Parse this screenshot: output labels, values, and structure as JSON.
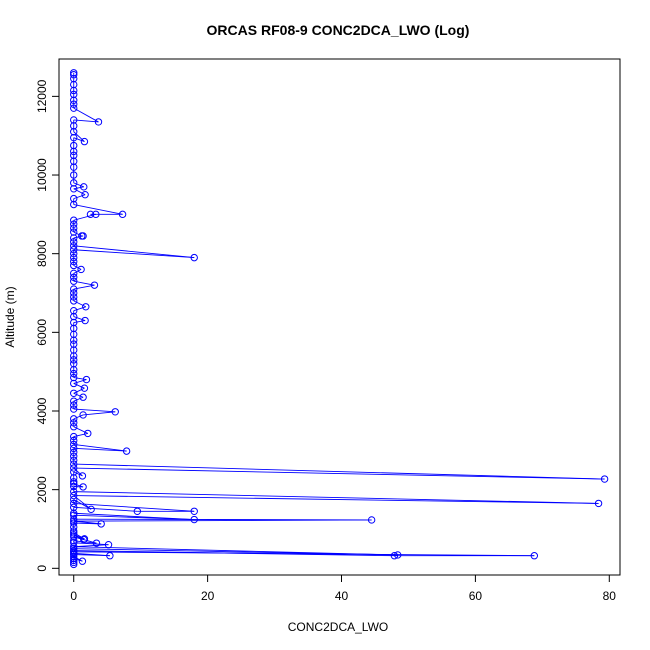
{
  "chart_data": {
    "type": "scatter",
    "title": "ORCAS RF08-9 CONC2DCA_LWO (Log)",
    "xlabel": "CONC2DCA_LWO",
    "ylabel": "Altitude (m)",
    "xlim": [
      -2.2,
      81.6
    ],
    "ylim": [
      -170,
      12950
    ],
    "xticks": [
      0,
      20,
      40,
      60,
      80
    ],
    "yticks": [
      0,
      2000,
      4000,
      6000,
      8000,
      10000,
      12000
    ],
    "grid": false,
    "legend": "none",
    "series_color": "#0000ff",
    "marker": "open-circle",
    "connected": true,
    "points": [
      [
        0,
        12600
      ],
      [
        0,
        12550
      ],
      [
        0,
        12450
      ],
      [
        0,
        12300
      ],
      [
        0,
        12150
      ],
      [
        0,
        12050
      ],
      [
        0,
        11900
      ],
      [
        0,
        11800
      ],
      [
        0,
        11700
      ],
      [
        3.7,
        11350
      ],
      [
        0,
        11400
      ],
      [
        0,
        11250
      ],
      [
        0,
        11100
      ],
      [
        1.6,
        10850
      ],
      [
        0,
        10950
      ],
      [
        0,
        10750
      ],
      [
        0,
        10600
      ],
      [
        0,
        10500
      ],
      [
        0,
        10350
      ],
      [
        0,
        10200
      ],
      [
        0,
        10000
      ],
      [
        0,
        9800
      ],
      [
        1.5,
        9700
      ],
      [
        0,
        9650
      ],
      [
        1.7,
        9500
      ],
      [
        0,
        9400
      ],
      [
        0,
        9250
      ],
      [
        7.3,
        9000
      ],
      [
        2.5,
        9000
      ],
      [
        3.3,
        9000
      ],
      [
        0,
        8850
      ],
      [
        0,
        8750
      ],
      [
        0,
        8650
      ],
      [
        0,
        8550
      ],
      [
        1.2,
        8450
      ],
      [
        1.4,
        8450
      ],
      [
        0,
        8400
      ],
      [
        0,
        8300
      ],
      [
        0,
        8200
      ],
      [
        18,
        7900
      ],
      [
        0,
        8100
      ],
      [
        0,
        8000
      ],
      [
        0,
        7900
      ],
      [
        0,
        7800
      ],
      [
        0,
        7700
      ],
      [
        1.1,
        7600
      ],
      [
        0,
        7500
      ],
      [
        0,
        7400
      ],
      [
        0,
        7300
      ],
      [
        3.1,
        7200
      ],
      [
        0,
        7100
      ],
      [
        0,
        7000
      ],
      [
        0,
        6900
      ],
      [
        0,
        6800
      ],
      [
        1.8,
        6650
      ],
      [
        0,
        6550
      ],
      [
        0,
        6400
      ],
      [
        1.7,
        6300
      ],
      [
        0,
        6250
      ],
      [
        0,
        6100
      ],
      [
        0,
        5950
      ],
      [
        0,
        5800
      ],
      [
        0,
        5700
      ],
      [
        0,
        5550
      ],
      [
        0,
        5400
      ],
      [
        0,
        5300
      ],
      [
        0,
        5200
      ],
      [
        0,
        5050
      ],
      [
        0,
        4950
      ],
      [
        0,
        4850
      ],
      [
        1.9,
        4800
      ],
      [
        0,
        4700
      ],
      [
        1.6,
        4580
      ],
      [
        0,
        4450
      ],
      [
        1.4,
        4350
      ],
      [
        0,
        4250
      ],
      [
        0,
        4150
      ],
      [
        0,
        4050
      ],
      [
        6.2,
        3980
      ],
      [
        1.4,
        3900
      ],
      [
        0,
        3800
      ],
      [
        0,
        3700
      ],
      [
        0,
        3600
      ],
      [
        2.1,
        3430
      ],
      [
        0,
        3350
      ],
      [
        0,
        3250
      ],
      [
        0,
        3150
      ],
      [
        7.9,
        2980
      ],
      [
        0,
        3050
      ],
      [
        0,
        2950
      ],
      [
        0,
        2850
      ],
      [
        0,
        2750
      ],
      [
        0,
        2650
      ],
      [
        79.3,
        2270
      ],
      [
        0,
        2550
      ],
      [
        1.3,
        2350
      ],
      [
        0,
        2450
      ],
      [
        0,
        2300
      ],
      [
        0,
        2200
      ],
      [
        0,
        2150
      ],
      [
        1.4,
        2070
      ],
      [
        0,
        2080
      ],
      [
        0,
        1950
      ],
      [
        78.4,
        1650
      ],
      [
        0,
        1850
      ],
      [
        2.6,
        1500
      ],
      [
        0,
        1750
      ],
      [
        0,
        1650
      ],
      [
        18,
        1450
      ],
      [
        9.5,
        1450
      ],
      [
        0,
        1550
      ],
      [
        0,
        1400
      ],
      [
        18,
        1240
      ],
      [
        0,
        1350
      ],
      [
        0,
        1250
      ],
      [
        44.5,
        1230
      ],
      [
        0,
        1200
      ],
      [
        4.1,
        1130
      ],
      [
        0,
        1150
      ],
      [
        0,
        1050
      ],
      [
        0,
        950
      ],
      [
        0,
        900
      ],
      [
        1.6,
        750
      ],
      [
        0,
        850
      ],
      [
        1.5,
        730
      ],
      [
        0,
        800
      ],
      [
        3.4,
        640
      ],
      [
        0,
        700
      ],
      [
        0,
        650
      ],
      [
        5.2,
        600
      ],
      [
        0,
        550
      ],
      [
        48.4,
        340
      ],
      [
        0,
        500
      ],
      [
        0,
        450
      ],
      [
        47.9,
        320
      ],
      [
        68.8,
        320
      ],
      [
        0,
        420
      ],
      [
        0,
        380
      ],
      [
        5.4,
        320
      ],
      [
        0,
        350
      ],
      [
        0,
        300
      ],
      [
        1.3,
        180
      ],
      [
        0,
        250
      ],
      [
        0,
        200
      ],
      [
        0,
        150
      ],
      [
        0,
        100
      ]
    ]
  }
}
